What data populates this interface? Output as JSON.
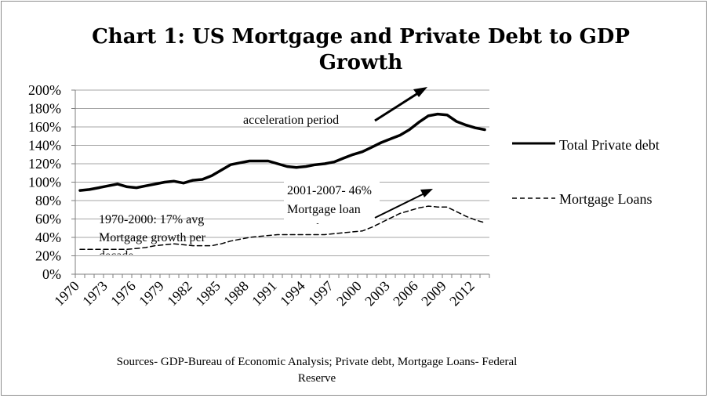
{
  "chart_data": {
    "type": "line",
    "title_lines": [
      "Chart 1: US Mortgage and Private Debt to GDP",
      "Growth"
    ],
    "xlabel": "",
    "ylabel": "",
    "ylim": [
      0,
      200
    ],
    "y_ticks": [
      "0%",
      "20%",
      "40%",
      "60%",
      "80%",
      "100%",
      "120%",
      "140%",
      "160%",
      "180%",
      "200%"
    ],
    "x_tick_labels": [
      "1970",
      "1973",
      "1976",
      "1979",
      "1982",
      "1985",
      "1988",
      "1991",
      "1994",
      "1997",
      "2000",
      "2003",
      "2006",
      "2009",
      "2012"
    ],
    "grid": "horizontal",
    "legend_position": "right",
    "x": [
      1970,
      1971,
      1972,
      1973,
      1974,
      1975,
      1976,
      1977,
      1978,
      1979,
      1980,
      1981,
      1982,
      1983,
      1984,
      1985,
      1986,
      1987,
      1988,
      1989,
      1990,
      1991,
      1992,
      1993,
      1994,
      1995,
      1996,
      1997,
      1998,
      1999,
      2000,
      2001,
      2002,
      2003,
      2004,
      2005,
      2006,
      2007,
      2008,
      2009,
      2010,
      2011,
      2012,
      2013
    ],
    "series": [
      {
        "name": "Total Private debt",
        "style": "solid",
        "values": [
          91,
          92,
          94,
          96,
          98,
          95,
          94,
          96,
          98,
          100,
          101,
          99,
          102,
          103,
          107,
          113,
          119,
          121,
          123,
          123,
          123,
          120,
          117,
          116,
          117,
          119,
          120,
          122,
          126,
          130,
          133,
          138,
          143,
          147,
          151,
          157,
          165,
          172,
          174,
          173,
          166,
          162,
          159,
          157
        ]
      },
      {
        "name": "Mortgage Loans",
        "style": "dashed",
        "values": [
          27,
          27,
          27,
          27,
          27,
          27,
          28,
          29,
          31,
          32,
          33,
          32,
          31,
          31,
          31,
          33,
          36,
          38,
          40,
          41,
          42,
          43,
          43,
          43,
          43,
          43,
          43,
          44,
          45,
          46,
          47,
          51,
          56,
          61,
          66,
          69,
          72,
          74,
          73,
          73,
          68,
          63,
          59,
          56
        ]
      }
    ],
    "annotations": {
      "acceleration": "acceleration period",
      "recent_1": "2001-2007- 46%",
      "recent_2": "Mortgage loan",
      "recent_3": "growth",
      "early_1": "1970-2000: 17% avg",
      "early_2": "Mortgage growth per",
      "early_3": "decade"
    },
    "source_lines": [
      "Sources- GDP-Bureau of Economic Analysis; Private debt, Mortgage Loans- Federal",
      "Reserve"
    ]
  },
  "colors": {
    "line": "#000000",
    "grid": "#a6a6a6",
    "axis": "#7f7f7f"
  }
}
